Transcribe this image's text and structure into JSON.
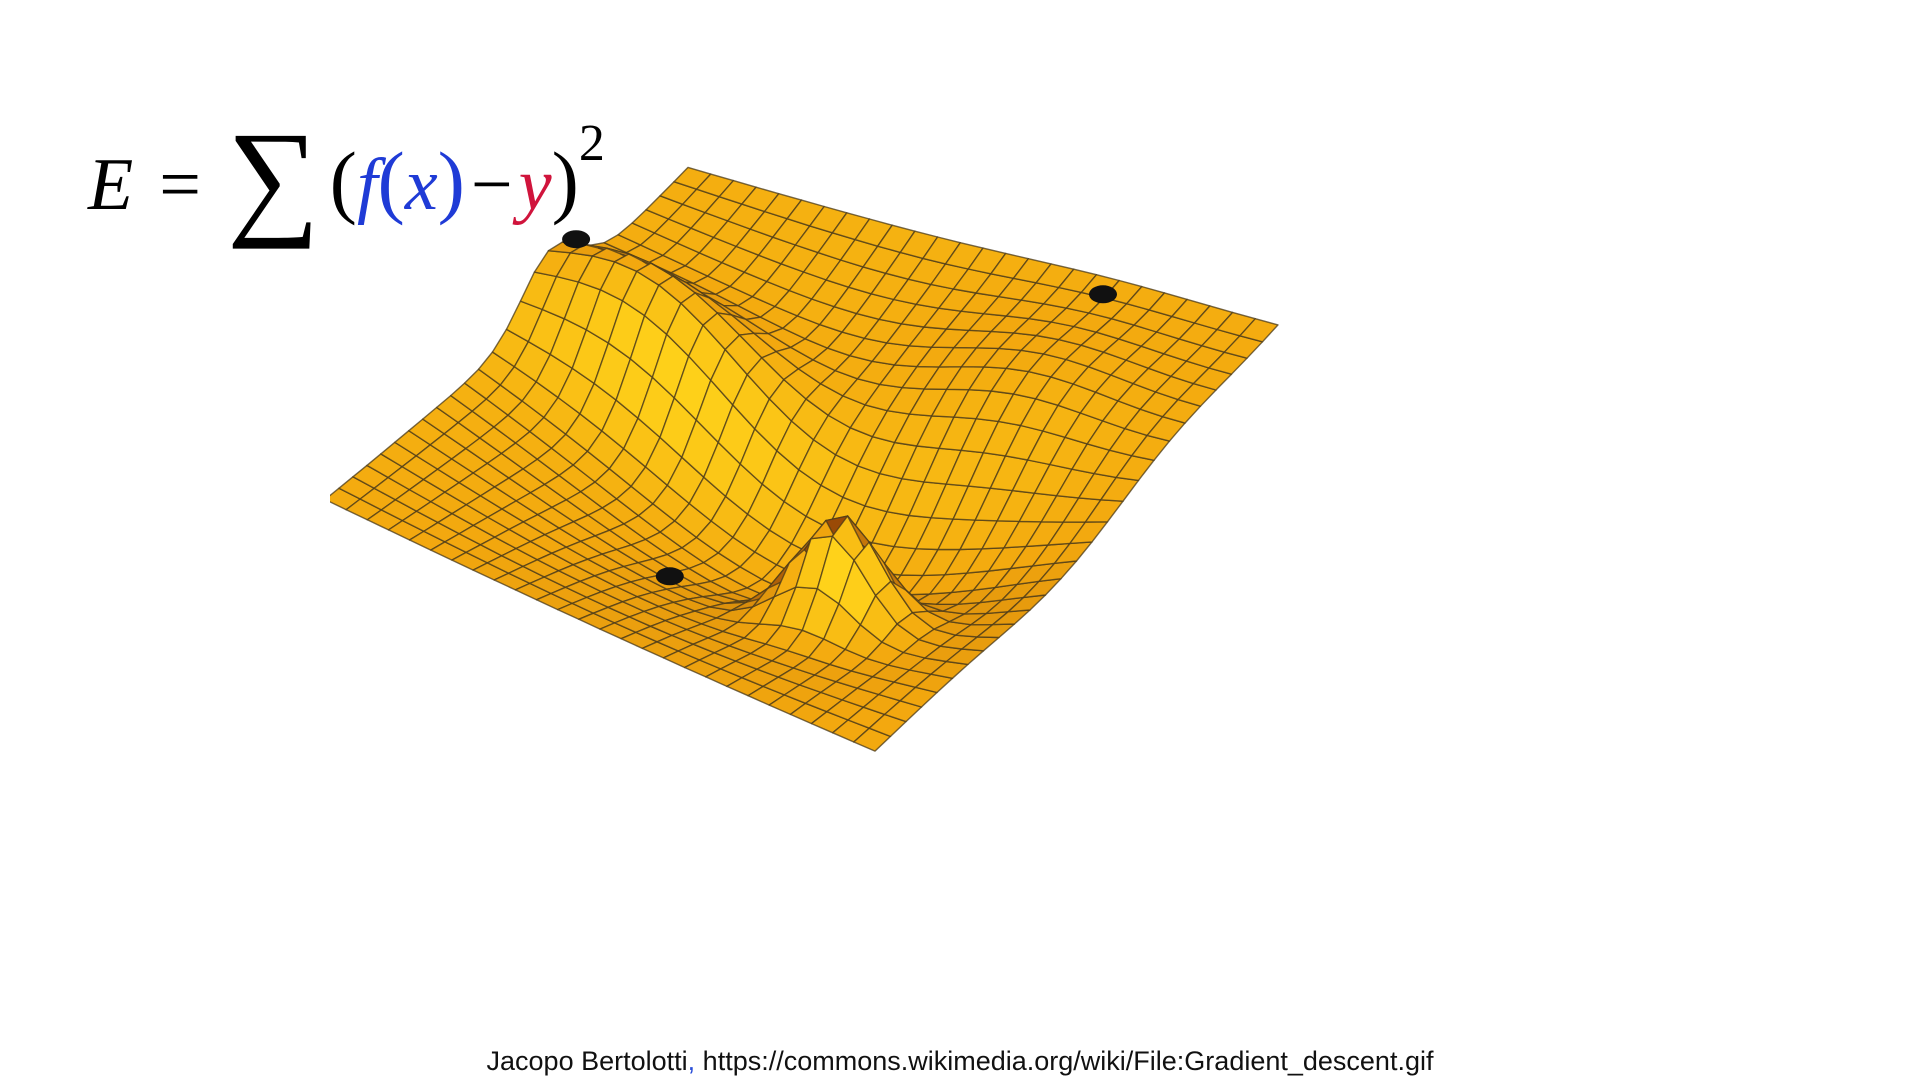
{
  "formula": {
    "lhs": "E",
    "equals": "=",
    "sum": "∑",
    "open_paren": "(",
    "f": "f",
    "fx_open": "(",
    "x": "x",
    "fx_close": ")",
    "minus": "−",
    "y": "y",
    "close_paren": ")",
    "exponent": "2",
    "colors": {
      "fx": "#1f3bd6",
      "y": "#d0143c",
      "text": "#000000"
    }
  },
  "surface": {
    "description_icon": "error-surface-3d",
    "colors": {
      "light": "#ffd21a",
      "mid": "#f3a80f",
      "dark": "#9a4a06",
      "grid": "#4a3a1a"
    },
    "markers": 3
  },
  "credit": {
    "author": "Jacopo Bertolotti",
    "separator": ",",
    "url": "https://commons.wikimedia.org/wiki/File:Gradient_descent.gif"
  }
}
